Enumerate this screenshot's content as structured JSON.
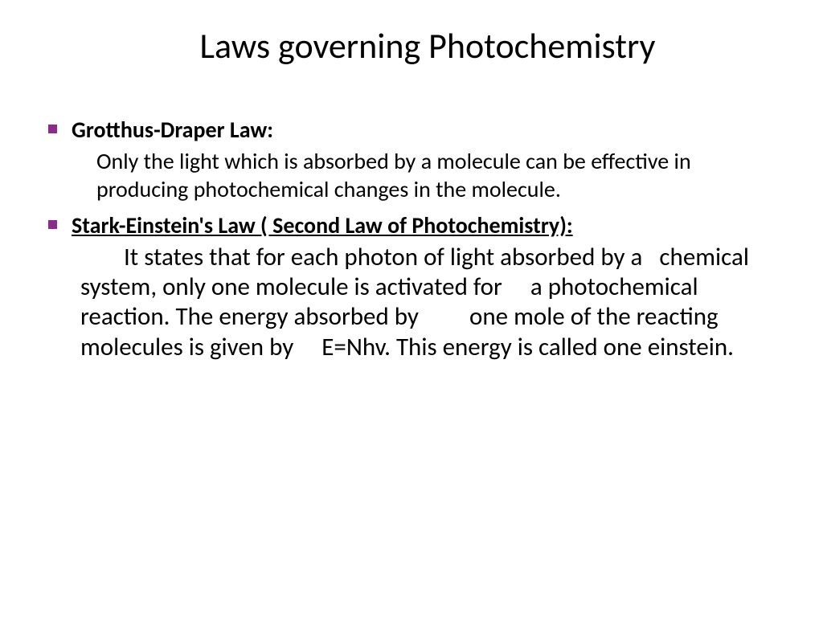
{
  "title": "Laws governing Photochemistry",
  "bullet_color": "#8b2c8b",
  "law1": {
    "heading": "Grotthus-Draper Law:",
    "body": "Only the light which is absorbed by a molecule can be effective in producing photochemical changes in the molecule."
  },
  "law2": {
    "heading": "Stark-Einstein's Law ( Second Law of Photochemistry):",
    "body": "It states that for each photon of light absorbed by a   chemical system, only one molecule is activated for     a photochemical reaction. The energy absorbed by         one mole of the reacting molecules is given by     E=Nhv. This energy is called one einstein."
  },
  "fonts": {
    "title_size": 44,
    "law1_heading_size": 28,
    "law1_body_size": 28,
    "law2_heading_size": 28,
    "law2_body_size": 31
  },
  "colors": {
    "background": "#ffffff",
    "text": "#000000",
    "bullet": "#8b2c8b"
  }
}
